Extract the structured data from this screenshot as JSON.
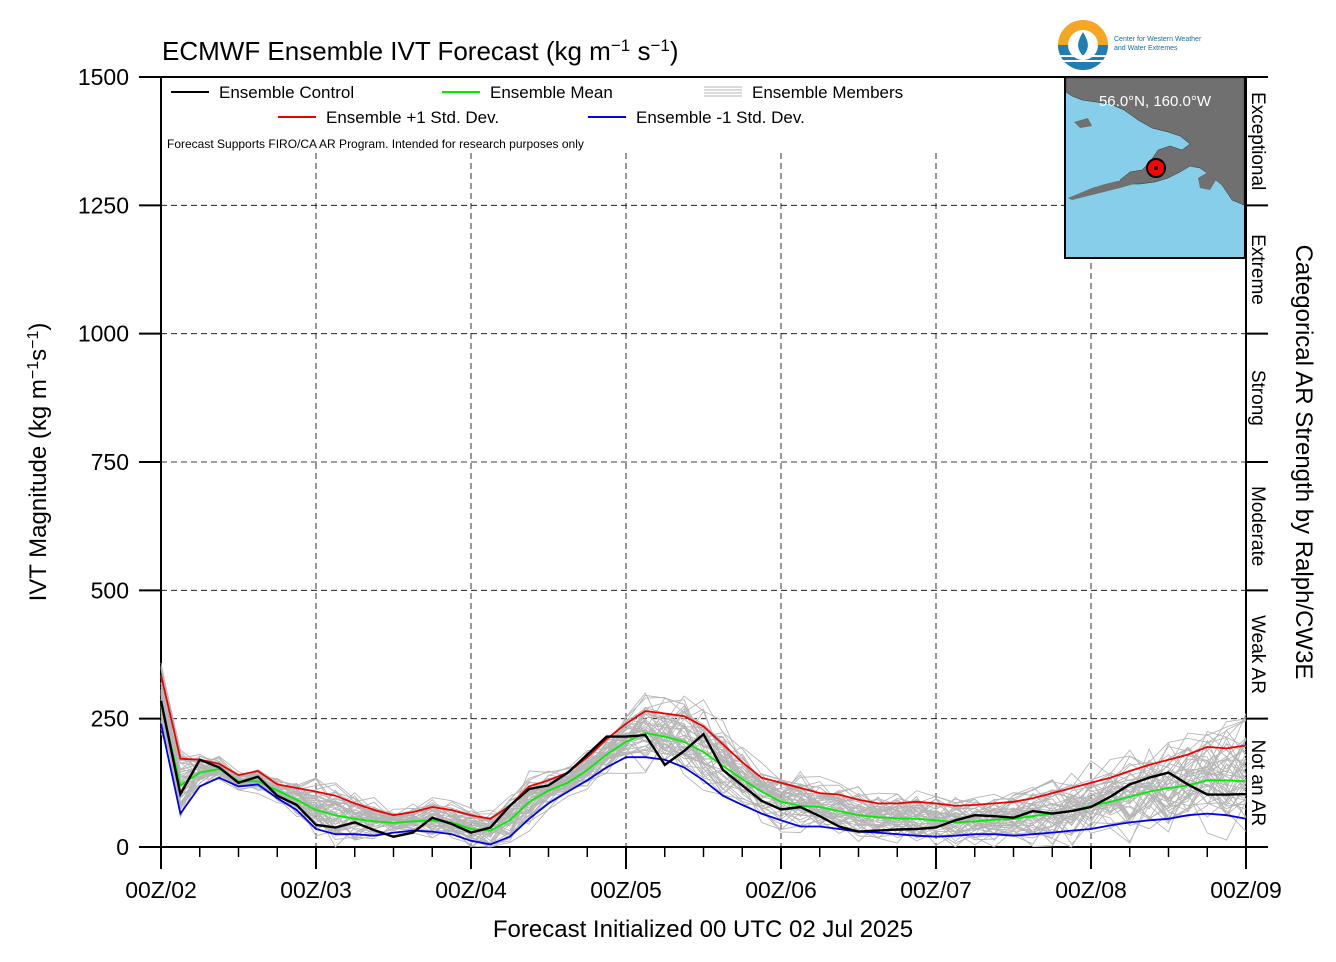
{
  "chart_data": {
    "type": "line",
    "title_main": "ECMWF Ensemble IVT Forecast (kg m",
    "title_sup1": "−1",
    "title_mid": " s",
    "title_sup2": "−1",
    "title_end": ")",
    "ylabel_main": "IVT Magnitude (kg m",
    "ylabel_sup1": "−1",
    "ylabel_mid": "s",
    "ylabel_sup2": "−1",
    "ylabel_end": ")",
    "xlabel": "Forecast Initialized 00 UTC 02 Jul 2025",
    "right_label": "Categorical AR Strength by Ralph/CW3E",
    "ylim": [
      0,
      1500
    ],
    "yticks": [
      "0",
      "250",
      "500",
      "750",
      "1000",
      "1250",
      "1500"
    ],
    "xlim": [
      0,
      168
    ],
    "x_units": "hours since 00Z/02",
    "xticks": [
      {
        "x": 0,
        "label": "00Z/02"
      },
      {
        "x": 24,
        "label": "00Z/03"
      },
      {
        "x": 48,
        "label": "00Z/04"
      },
      {
        "x": 72,
        "label": "00Z/05"
      },
      {
        "x": 96,
        "label": "00Z/06"
      },
      {
        "x": 120,
        "label": "00Z/07"
      },
      {
        "x": 144,
        "label": "00Z/08"
      },
      {
        "x": 168,
        "label": "00Z/09"
      }
    ],
    "grid": true,
    "legend_position": "top-left",
    "legend": {
      "control": "Ensemble Control",
      "mean": "Ensemble Mean",
      "members": "Ensemble Members",
      "plus_sd": "Ensemble +1 Std. Dev.",
      "minus_sd": "Ensemble -1 Std. Dev."
    },
    "note": "Forecast Supports FIRO/CA AR Program. Intended for research purposes only",
    "categories": [
      {
        "label": "Not an AR",
        "min": 0,
        "max": 250
      },
      {
        "label": "Weak AR",
        "min": 250,
        "max": 500
      },
      {
        "label": "Moderate",
        "min": 500,
        "max": 750
      },
      {
        "label": "Strong",
        "min": 750,
        "max": 1000
      },
      {
        "label": "Extreme",
        "min": 1000,
        "max": 1250
      },
      {
        "label": "Exceptional",
        "min": 1250,
        "max": 1500
      }
    ],
    "series": [
      {
        "name": "Ensemble Control",
        "color": "#000000",
        "points": [
          [
            0,
            285
          ],
          [
            3,
            103
          ],
          [
            6,
            170
          ],
          [
            9,
            155
          ],
          [
            12,
            125
          ],
          [
            15,
            137
          ],
          [
            18,
            100
          ],
          [
            21,
            82
          ],
          [
            24,
            43
          ],
          [
            27,
            38
          ],
          [
            30,
            48
          ],
          [
            33,
            33
          ],
          [
            36,
            20
          ],
          [
            39,
            28
          ],
          [
            42,
            57
          ],
          [
            45,
            45
          ],
          [
            48,
            28
          ],
          [
            51,
            38
          ],
          [
            54,
            80
          ],
          [
            57,
            113
          ],
          [
            60,
            120
          ],
          [
            63,
            145
          ],
          [
            66,
            180
          ],
          [
            69,
            215
          ],
          [
            72,
            215
          ],
          [
            75,
            218
          ],
          [
            78,
            160
          ],
          [
            81,
            187
          ],
          [
            84,
            220
          ],
          [
            87,
            150
          ],
          [
            90,
            120
          ],
          [
            93,
            90
          ],
          [
            96,
            73
          ],
          [
            99,
            78
          ],
          [
            102,
            60
          ],
          [
            105,
            40
          ],
          [
            108,
            30
          ],
          [
            111,
            32
          ],
          [
            114,
            34
          ],
          [
            117,
            35
          ],
          [
            120,
            38
          ],
          [
            123,
            52
          ],
          [
            126,
            62
          ],
          [
            129,
            60
          ],
          [
            132,
            57
          ],
          [
            135,
            70
          ],
          [
            138,
            65
          ],
          [
            141,
            70
          ],
          [
            144,
            78
          ],
          [
            147,
            98
          ],
          [
            150,
            122
          ],
          [
            153,
            135
          ],
          [
            156,
            145
          ],
          [
            159,
            122
          ],
          [
            162,
            102
          ],
          [
            165,
            102
          ],
          [
            168,
            103
          ]
        ]
      },
      {
        "name": "Ensemble Mean",
        "color": "#00ee00",
        "points": [
          [
            0,
            280
          ],
          [
            3,
            120
          ],
          [
            6,
            145
          ],
          [
            9,
            152
          ],
          [
            12,
            128
          ],
          [
            15,
            128
          ],
          [
            18,
            110
          ],
          [
            21,
            92
          ],
          [
            24,
            72
          ],
          [
            27,
            62
          ],
          [
            30,
            55
          ],
          [
            33,
            50
          ],
          [
            36,
            47
          ],
          [
            39,
            50
          ],
          [
            42,
            52
          ],
          [
            45,
            48
          ],
          [
            48,
            35
          ],
          [
            51,
            32
          ],
          [
            54,
            52
          ],
          [
            57,
            88
          ],
          [
            60,
            110
          ],
          [
            63,
            125
          ],
          [
            66,
            150
          ],
          [
            69,
            180
          ],
          [
            72,
            205
          ],
          [
            75,
            222
          ],
          [
            78,
            215
          ],
          [
            81,
            205
          ],
          [
            84,
            185
          ],
          [
            87,
            158
          ],
          [
            90,
            132
          ],
          [
            93,
            108
          ],
          [
            96,
            88
          ],
          [
            99,
            80
          ],
          [
            102,
            78
          ],
          [
            105,
            70
          ],
          [
            108,
            62
          ],
          [
            111,
            58
          ],
          [
            114,
            56
          ],
          [
            117,
            55
          ],
          [
            120,
            52
          ],
          [
            123,
            48
          ],
          [
            126,
            50
          ],
          [
            129,
            53
          ],
          [
            132,
            55
          ],
          [
            135,
            60
          ],
          [
            138,
            65
          ],
          [
            141,
            70
          ],
          [
            144,
            80
          ],
          [
            147,
            88
          ],
          [
            150,
            98
          ],
          [
            153,
            108
          ],
          [
            156,
            115
          ],
          [
            159,
            120
          ],
          [
            162,
            130
          ],
          [
            165,
            130
          ],
          [
            168,
            128
          ]
        ]
      },
      {
        "name": "Ensemble +1 Std. Dev.",
        "color": "#ee0000",
        "points": [
          [
            0,
            335
          ],
          [
            3,
            172
          ],
          [
            6,
            170
          ],
          [
            9,
            162
          ],
          [
            12,
            140
          ],
          [
            15,
            148
          ],
          [
            18,
            122
          ],
          [
            21,
            115
          ],
          [
            24,
            108
          ],
          [
            27,
            100
          ],
          [
            30,
            85
          ],
          [
            33,
            72
          ],
          [
            36,
            62
          ],
          [
            39,
            68
          ],
          [
            42,
            78
          ],
          [
            45,
            72
          ],
          [
            48,
            62
          ],
          [
            51,
            55
          ],
          [
            54,
            80
          ],
          [
            57,
            118
          ],
          [
            60,
            130
          ],
          [
            63,
            145
          ],
          [
            66,
            175
          ],
          [
            69,
            210
          ],
          [
            72,
            240
          ],
          [
            75,
            265
          ],
          [
            78,
            260
          ],
          [
            81,
            255
          ],
          [
            84,
            235
          ],
          [
            87,
            200
          ],
          [
            90,
            165
          ],
          [
            93,
            135
          ],
          [
            96,
            125
          ],
          [
            99,
            115
          ],
          [
            102,
            105
          ],
          [
            105,
            102
          ],
          [
            108,
            92
          ],
          [
            111,
            85
          ],
          [
            114,
            85
          ],
          [
            117,
            88
          ],
          [
            120,
            85
          ],
          [
            123,
            80
          ],
          [
            126,
            82
          ],
          [
            129,
            85
          ],
          [
            132,
            88
          ],
          [
            135,
            95
          ],
          [
            138,
            105
          ],
          [
            141,
            115
          ],
          [
            144,
            125
          ],
          [
            147,
            135
          ],
          [
            150,
            148
          ],
          [
            153,
            160
          ],
          [
            156,
            170
          ],
          [
            159,
            180
          ],
          [
            162,
            195
          ],
          [
            165,
            192
          ],
          [
            168,
            198
          ]
        ]
      },
      {
        "name": "Ensemble -1 Std. Dev.",
        "color": "#0000ee",
        "points": [
          [
            0,
            240
          ],
          [
            3,
            65
          ],
          [
            6,
            118
          ],
          [
            9,
            135
          ],
          [
            12,
            118
          ],
          [
            15,
            122
          ],
          [
            18,
            95
          ],
          [
            21,
            72
          ],
          [
            24,
            35
          ],
          [
            27,
            25
          ],
          [
            30,
            25
          ],
          [
            33,
            22
          ],
          [
            36,
            28
          ],
          [
            39,
            32
          ],
          [
            42,
            30
          ],
          [
            45,
            25
          ],
          [
            48,
            12
          ],
          [
            51,
            5
          ],
          [
            54,
            20
          ],
          [
            57,
            55
          ],
          [
            60,
            85
          ],
          [
            63,
            108
          ],
          [
            66,
            130
          ],
          [
            69,
            155
          ],
          [
            72,
            175
          ],
          [
            75,
            175
          ],
          [
            78,
            170
          ],
          [
            81,
            155
          ],
          [
            84,
            130
          ],
          [
            87,
            100
          ],
          [
            90,
            82
          ],
          [
            93,
            65
          ],
          [
            96,
            52
          ],
          [
            99,
            40
          ],
          [
            102,
            40
          ],
          [
            105,
            35
          ],
          [
            108,
            30
          ],
          [
            111,
            28
          ],
          [
            114,
            25
          ],
          [
            117,
            22
          ],
          [
            120,
            20
          ],
          [
            123,
            22
          ],
          [
            126,
            25
          ],
          [
            129,
            25
          ],
          [
            132,
            22
          ],
          [
            135,
            25
          ],
          [
            138,
            28
          ],
          [
            141,
            32
          ],
          [
            144,
            35
          ],
          [
            147,
            42
          ],
          [
            150,
            48
          ],
          [
            153,
            52
          ],
          [
            156,
            55
          ],
          [
            159,
            62
          ],
          [
            162,
            65
          ],
          [
            165,
            62
          ],
          [
            168,
            55
          ]
        ]
      }
    ],
    "members_count": 50,
    "members_color": "#b5b5b5"
  },
  "inset_map": {
    "label": "56.0°N, 160.0°W",
    "water_color": "#87ceeb",
    "land_color": "#707070",
    "marker_color": "#ff0000"
  },
  "logo": {
    "line1": "Center for Western Weather",
    "line2": "and Water Extremes",
    "icon": "cw3e-drop-logo-icon"
  }
}
